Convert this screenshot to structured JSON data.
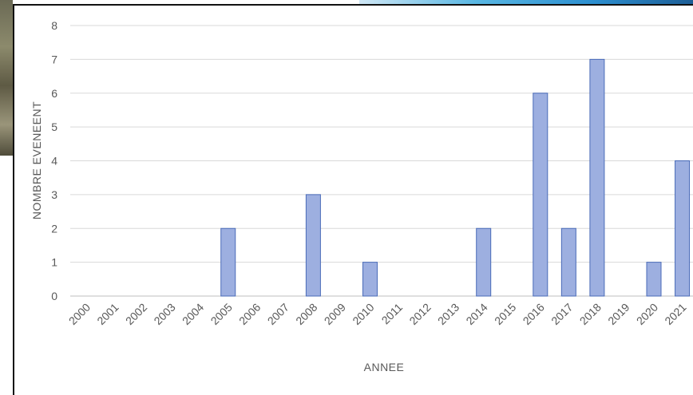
{
  "chart_data": {
    "type": "bar",
    "title": "",
    "xlabel": "ANNEE",
    "ylabel": "NOMBRE EVENEENT",
    "ylim": [
      0,
      8
    ],
    "yticks": [
      0,
      1,
      2,
      3,
      4,
      5,
      6,
      7,
      8
    ],
    "grid": true,
    "legend": "none",
    "bar_color": "#9dafe0",
    "bar_edge_color": "#4a6bb8",
    "categories": [
      "2000",
      "2001",
      "2002",
      "2003",
      "2004",
      "2005",
      "2006",
      "2007",
      "2008",
      "2009",
      "2010",
      "2011",
      "2012",
      "2013",
      "2014",
      "2015",
      "2016",
      "2017",
      "2018",
      "2019",
      "2020",
      "2021"
    ],
    "values": [
      0,
      0,
      0,
      0,
      0,
      2,
      0,
      0,
      3,
      0,
      1,
      0,
      0,
      0,
      2,
      0,
      6,
      2,
      7,
      0,
      1,
      4
    ]
  }
}
